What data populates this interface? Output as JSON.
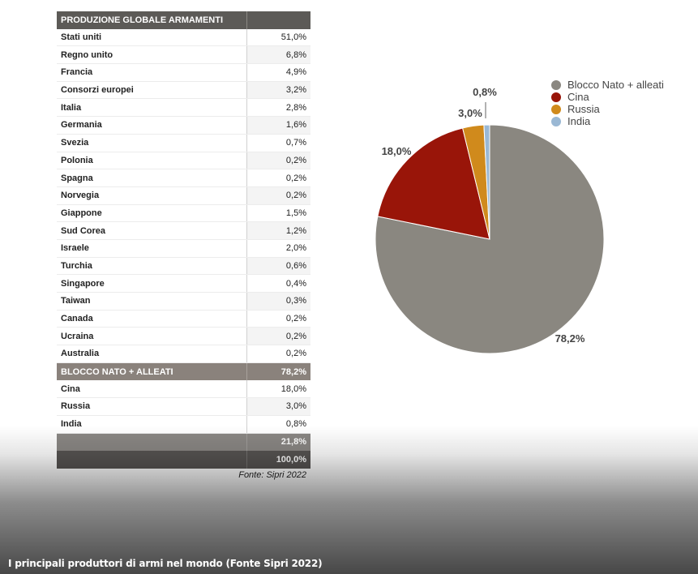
{
  "table": {
    "header": "PRODUZIONE GLOBALE ARMAMENTI",
    "rows": [
      {
        "name": "Stati uniti",
        "value": "51,0%"
      },
      {
        "name": "Regno unito",
        "value": "6,8%"
      },
      {
        "name": "Francia",
        "value": "4,9%"
      },
      {
        "name": "Consorzi europei",
        "value": "3,2%"
      },
      {
        "name": "Italia",
        "value": "2,8%"
      },
      {
        "name": "Germania",
        "value": "1,6%"
      },
      {
        "name": "Svezia",
        "value": "0,7%"
      },
      {
        "name": "Polonia",
        "value": "0,2%"
      },
      {
        "name": "Spagna",
        "value": "0,2%"
      },
      {
        "name": "Norvegia",
        "value": "0,2%"
      },
      {
        "name": "Giappone",
        "value": "1,5%"
      },
      {
        "name": "Sud Corea",
        "value": "1,2%"
      },
      {
        "name": "Israele",
        "value": "2,0%"
      },
      {
        "name": "Turchia",
        "value": "0,6%"
      },
      {
        "name": "Singapore",
        "value": "0,4%"
      },
      {
        "name": "Taiwan",
        "value": "0,3%"
      },
      {
        "name": "Canada",
        "value": "0,2%"
      },
      {
        "name": "Ucraina",
        "value": "0,2%"
      },
      {
        "name": "Australia",
        "value": "0,2%"
      }
    ],
    "bloc": {
      "name": "BLOCCO NATO + ALLEATI",
      "value": "78,2%"
    },
    "others": [
      {
        "name": "Cina",
        "value": "18,0%"
      },
      {
        "name": "Russia",
        "value": "3,0%"
      },
      {
        "name": "India",
        "value": "0,8%"
      }
    ],
    "subtotal": {
      "name": "",
      "value": "21,8%"
    },
    "total": {
      "name": "",
      "value": "100,0%"
    },
    "source": "Fonte: Sipri 2022"
  },
  "caption": "I principali produttori di armi nel mondo (Fonte Sipri 2022)",
  "chart_data": {
    "type": "pie",
    "title": "",
    "series": [
      {
        "name": "Blocco Nato + alleati",
        "value": 78.2,
        "label": "78,2%",
        "color": "#8a8780"
      },
      {
        "name": "Cina",
        "value": 18.0,
        "label": "18,0%",
        "color": "#991509"
      },
      {
        "name": "Russia",
        "value": 3.0,
        "label": "3,0%",
        "color": "#d08a1c"
      },
      {
        "name": "India",
        "value": 0.8,
        "label": "0,8%",
        "color": "#9ab8d4"
      }
    ],
    "legend_position": "top-right"
  }
}
